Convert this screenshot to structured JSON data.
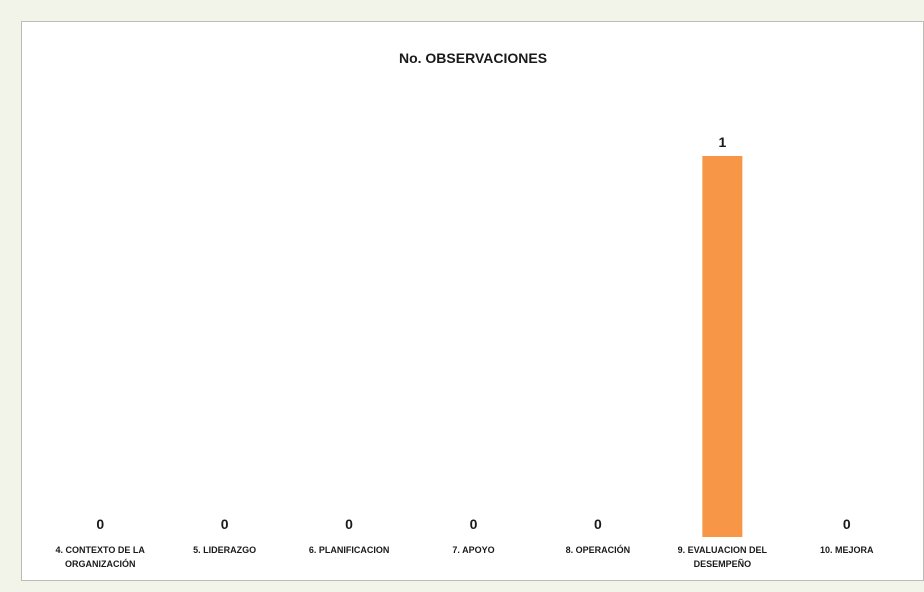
{
  "chart_data": {
    "type": "bar",
    "title": "No. OBSERVACIONES",
    "categories": [
      [
        "4. CONTEXTO DE LA",
        "ORGANIZACIÓN"
      ],
      [
        "5. LIDERAZGO"
      ],
      [
        "6. PLANIFICACION"
      ],
      [
        "7. APOYO"
      ],
      [
        "8. OPERACIÓN"
      ],
      [
        "9. EVALUACION DEL",
        "DESEMPEÑO"
      ],
      [
        "10. MEJORA"
      ]
    ],
    "values": [
      0,
      0,
      0,
      0,
      0,
      1,
      0
    ],
    "data_labels": [
      "0",
      "0",
      "0",
      "0",
      "0",
      "1",
      "0"
    ],
    "ylim": [
      0,
      1
    ],
    "grid": false,
    "legend": "none",
    "bar_color": "#f79646"
  }
}
